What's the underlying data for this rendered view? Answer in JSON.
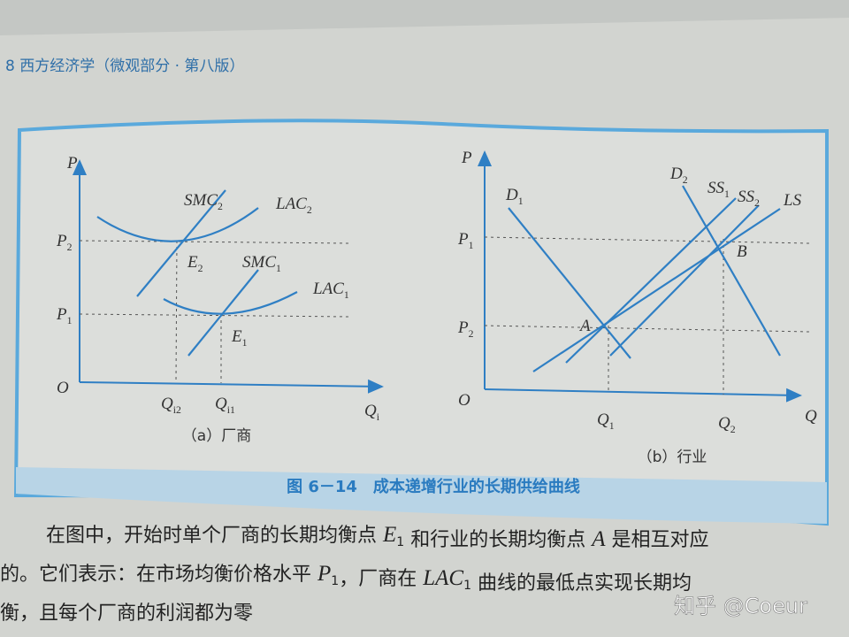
{
  "header": "8 西方经济学（微观部分 · 第八版）",
  "figure": {
    "panels": [
      {
        "caption": "（a）厂商",
        "labels": [
          {
            "text": "P"
          },
          {
            "text": "P",
            "sub": "2"
          },
          {
            "text": "P",
            "sub": "1"
          },
          {
            "text": "O"
          },
          {
            "text": "SMC",
            "sub": "2"
          },
          {
            "text": "LAC",
            "sub": "2"
          },
          {
            "text": "SMC",
            "sub": "1"
          },
          {
            "text": "LAC",
            "sub": "1"
          },
          {
            "text": "E",
            "sub": "2"
          },
          {
            "text": "E",
            "sub": "1"
          },
          {
            "text": "Q",
            "sub": "i2"
          },
          {
            "text": "Q",
            "sub": "i1"
          },
          {
            "text": "Q",
            "sub": "i"
          }
        ]
      },
      {
        "caption": "（b）行业",
        "labels": [
          {
            "text": "P"
          },
          {
            "text": "D",
            "sub": "1"
          },
          {
            "text": "D",
            "sub": "2"
          },
          {
            "text": "SS",
            "sub": "1"
          },
          {
            "text": "SS",
            "sub": "2"
          },
          {
            "text": "LS"
          },
          {
            "text": "P",
            "sub": "1"
          },
          {
            "text": "P",
            "sub": "2"
          },
          {
            "text": "A"
          },
          {
            "text": "B"
          },
          {
            "text": "O"
          },
          {
            "text": "Q",
            "sub": "1"
          },
          {
            "text": "Q",
            "sub": "2"
          },
          {
            "text": "Q"
          }
        ]
      }
    ],
    "caption": "图 6－14　成本递增行业的长期供给曲线"
  },
  "body": [
    [
      {
        "text": "在图中，开始时单个厂商的长期均衡点 "
      },
      {
        "text": "E",
        "sub": "1",
        "math": true
      },
      {
        "text": " 和行业的长期均衡点 "
      },
      {
        "text": "A",
        "math": true
      },
      {
        "text": " 是相互对应"
      }
    ],
    [
      {
        "text": "的。它们表示：在市场均衡价格水平 "
      },
      {
        "text": "P",
        "sub": "1",
        "math": true
      },
      {
        "text": "，厂商在 "
      },
      {
        "text": "LAC",
        "sub": "1",
        "math": true
      },
      {
        "text": " 曲线的最低点实现长期均"
      }
    ],
    [
      {
        "text": "衡，且每个厂商的利润都为零"
      }
    ]
  ],
  "watermark": "知乎 @Coeur"
}
